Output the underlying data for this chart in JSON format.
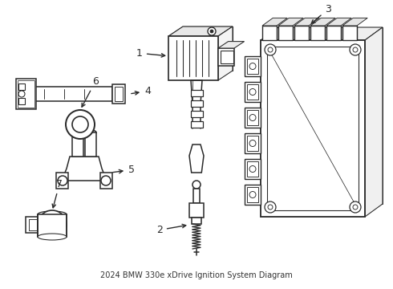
{
  "title": "2024 BMW 330e xDrive Ignition System Diagram",
  "background_color": "#ffffff",
  "line_color": "#2a2a2a",
  "line_width": 1.1,
  "figsize": [
    4.9,
    3.6
  ],
  "dpi": 100,
  "label_fontsize": 9
}
